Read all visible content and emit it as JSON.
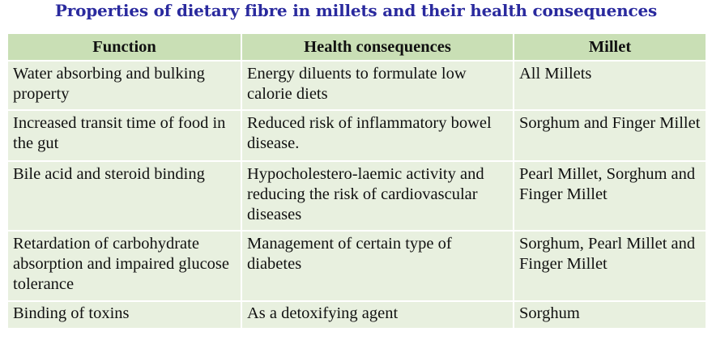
{
  "title": "Properties of dietary fibre in millets and their health consequences",
  "table": {
    "headers": [
      "Function",
      "Health consequences",
      "Millet"
    ],
    "rows": [
      [
        "Water absorbing and bulking property",
        "Energy diluents to formulate low calorie diets",
        "All Millets"
      ],
      [
        "Increased transit time of food in the gut",
        "Reduced risk of inflammatory bowel disease.",
        "Sorghum and Finger Millet"
      ],
      [
        "Bile acid and steroid binding",
        "Hypocholestero-laemic activity and reducing the risk of cardiovascular diseases",
        "Pearl Millet, Sorghum and Finger Millet"
      ],
      [
        "Retardation of carbohydrate absorption and impaired glucose tolerance",
        "Management of certain type of diabetes",
        "Sorghum, Pearl Millet and Finger Millet"
      ],
      [
        "Binding of toxins",
        "As a detoxifying agent",
        "Sorghum"
      ]
    ]
  },
  "colors": {
    "title": "#2a2a9e",
    "header_bg": "#c9dfb5",
    "cell_bg": "#e8f0df"
  }
}
